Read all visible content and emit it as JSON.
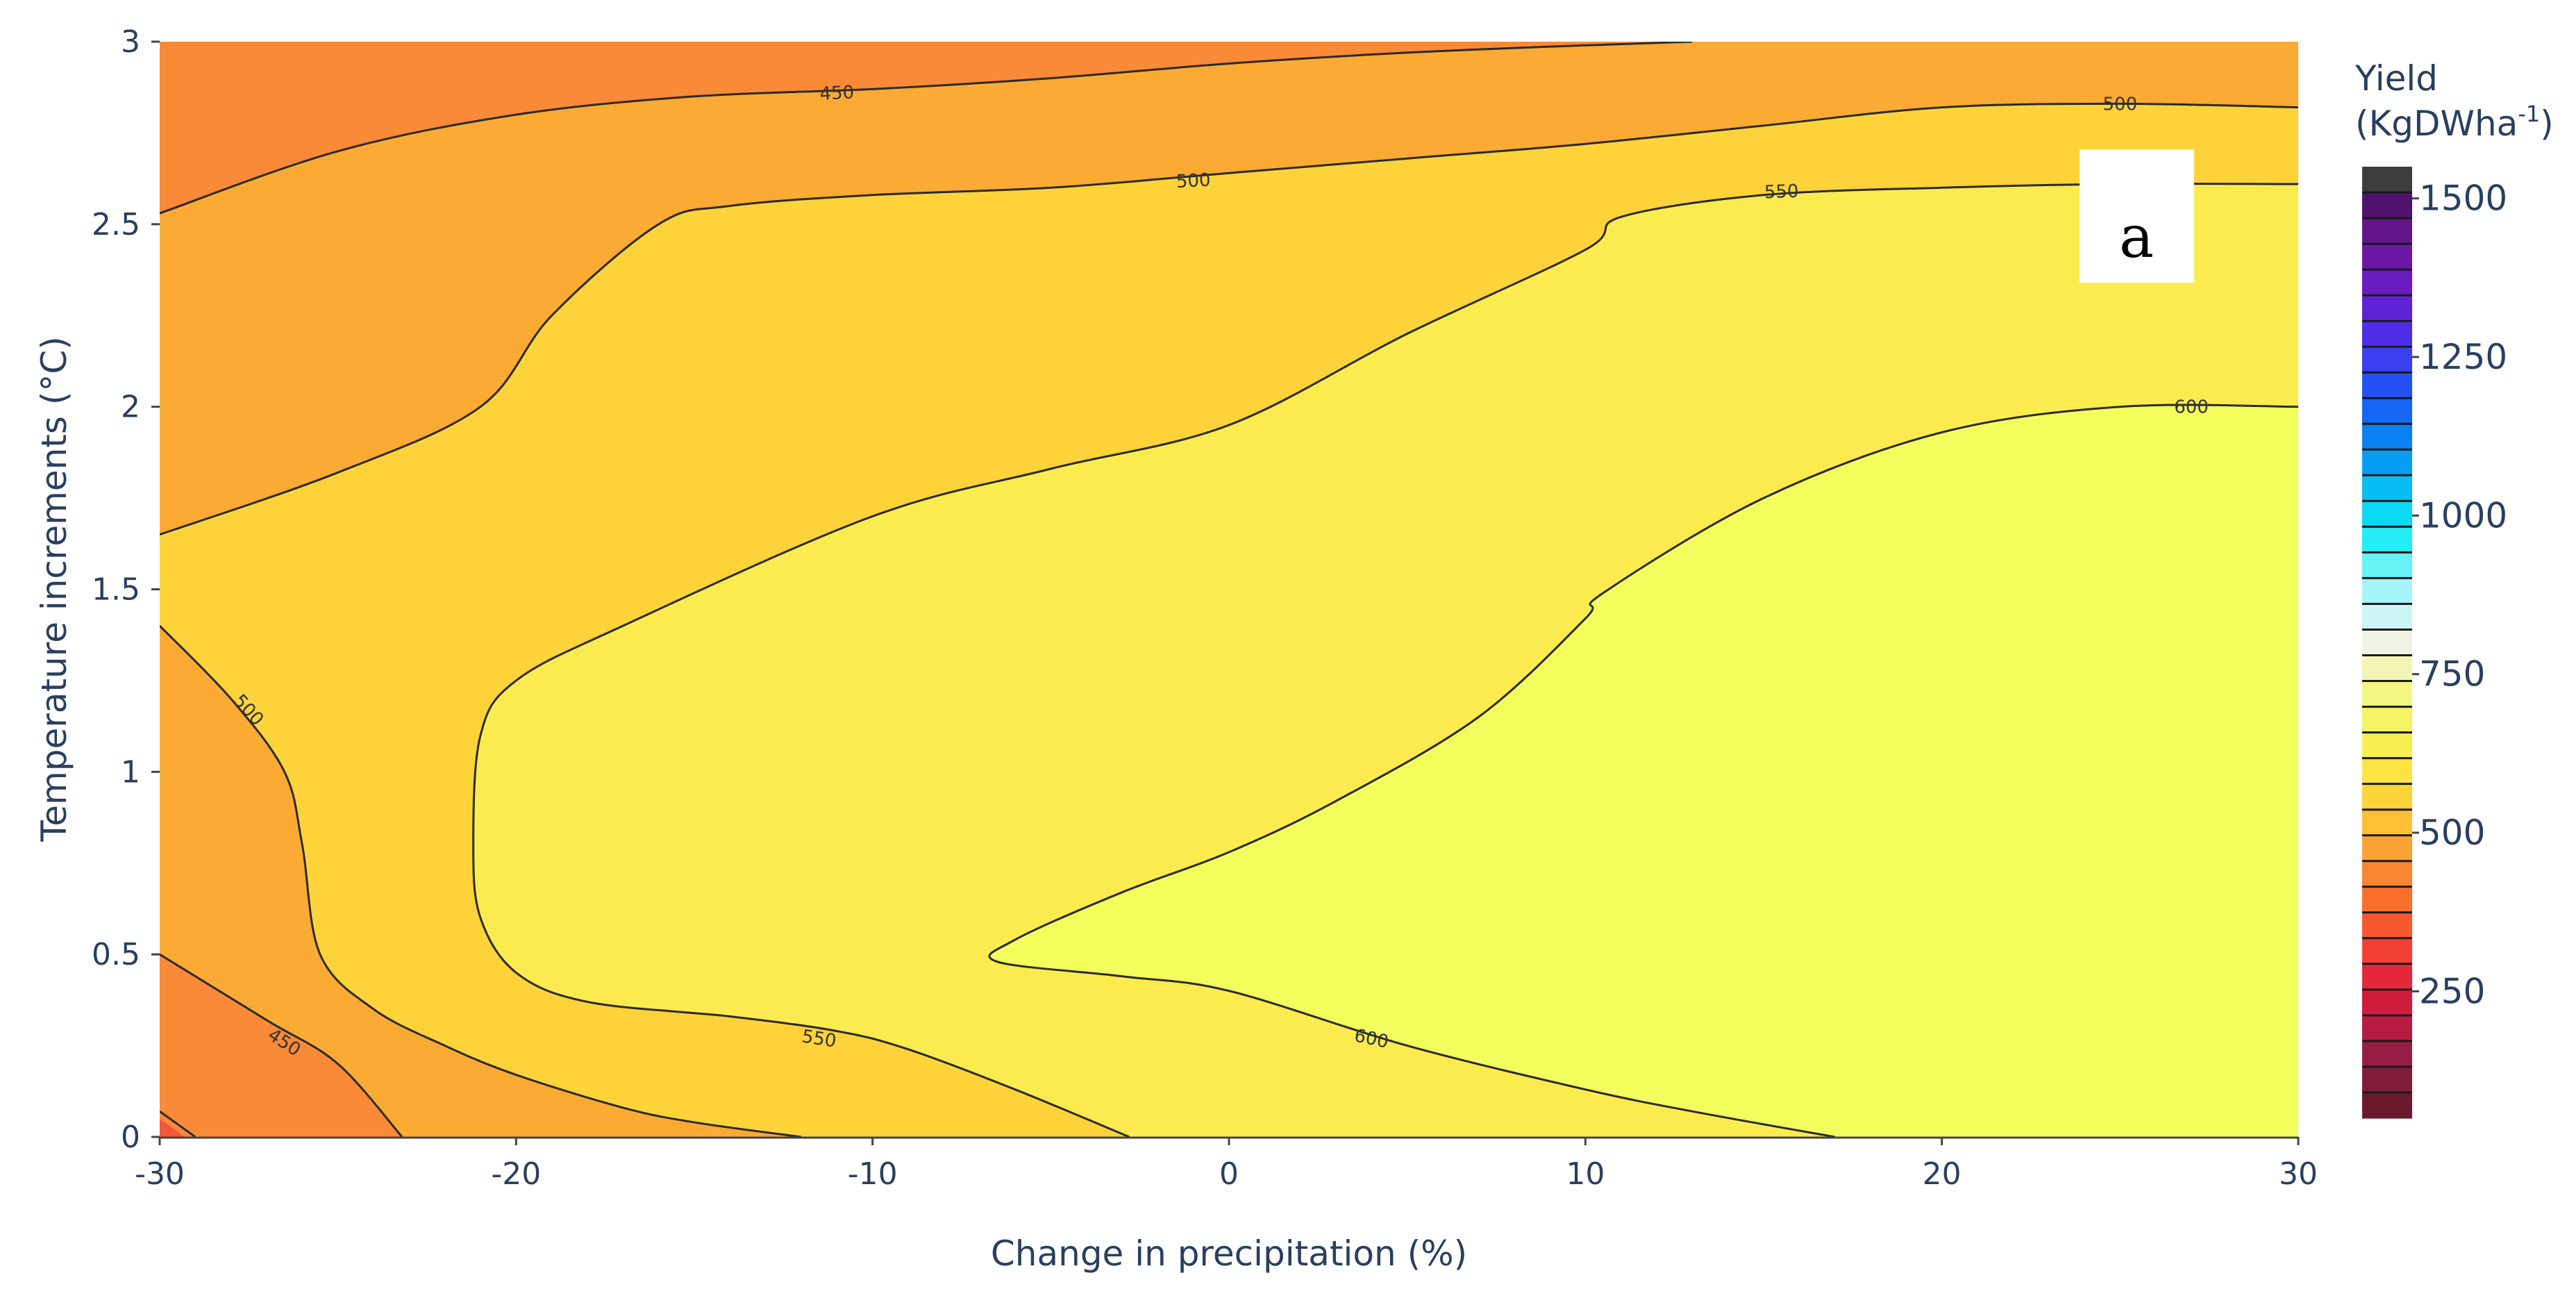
{
  "chart_data": {
    "type": "contour",
    "panel_label": "a",
    "xlabel": "Change in precipitation (%)",
    "ylabel": "Temperature increments (°C)",
    "xlim": [
      -30,
      30
    ],
    "ylim": [
      0,
      3
    ],
    "x_ticks": [
      "-30",
      "-20",
      "-10",
      "0",
      "10",
      "20",
      "30"
    ],
    "y_ticks": [
      "0",
      "0.5",
      "1",
      "1.5",
      "2",
      "2.5",
      "3"
    ],
    "x_tick_values": [
      -30,
      -20,
      -10,
      0,
      10,
      20,
      30
    ],
    "y_tick_values": [
      0,
      0.5,
      1,
      1.5,
      2,
      2.5,
      3
    ],
    "colorbar": {
      "title_line1": "Yield",
      "title_line2_base": "(KgDWha",
      "title_line2_sup": "-1",
      "title_line2_end": ")",
      "range": [
        50,
        1550
      ],
      "ticks": [
        "250",
        "500",
        "750",
        "1000",
        "1250",
        "1500"
      ],
      "tick_values": [
        250,
        500,
        750,
        1000,
        1250,
        1500
      ],
      "bin_size": 50,
      "bins": [
        "#6b1a2e",
        "#7e1c3a",
        "#981d43",
        "#b51c40",
        "#d01c3c",
        "#e4283a",
        "#f23f36",
        "#f8572f",
        "#f96f2b",
        "#f98530",
        "#fba234",
        "#fcbf36",
        "#fdd53a",
        "#fde444",
        "#f8ee52",
        "#f4f363",
        "#f3f681",
        "#f3f5b5",
        "#eef3e2",
        "#ccf5f7",
        "#a5f4f7",
        "#66f2f7",
        "#25edf6",
        "#0ad9f4",
        "#07bdf1",
        "#079ef1",
        "#0b80f3",
        "#1566f4",
        "#2450f4",
        "#3a3ff0",
        "#4e2fe6",
        "#5f22d6",
        "#6a1bc0",
        "#6d18a5",
        "#62168a",
        "#4f136d",
        "#3d3d3d"
      ]
    },
    "fill_colors": {
      "below_450": "#f98a37",
      "450_500": "#fbaa34",
      "500_550": "#fdd339",
      "550_600": "#fbeb4f",
      "above_600": "#f2fe5c"
    },
    "contours": [
      {
        "level": 450,
        "label": "450",
        "points": [
          [
            -30,
            2.53
          ],
          [
            -25,
            2.7
          ],
          [
            -20,
            2.8
          ],
          [
            -15,
            2.85
          ],
          [
            -10,
            2.87
          ],
          [
            -5,
            2.9
          ],
          [
            0,
            2.94
          ],
          [
            5,
            2.97
          ],
          [
            10,
            2.99
          ],
          [
            13,
            3.0
          ]
        ]
      },
      {
        "level": 450,
        "label": "450",
        "points": [
          [
            -30,
            0.5
          ],
          [
            -27,
            0.32
          ],
          [
            -25,
            0.2
          ],
          [
            -23.2,
            0.0
          ]
        ]
      },
      {
        "level": 500,
        "label": "500",
        "points": [
          [
            -30,
            1.65
          ],
          [
            -25,
            1.82
          ],
          [
            -21,
            2.0
          ],
          [
            -19,
            2.25
          ],
          [
            -16,
            2.5
          ],
          [
            -14,
            2.55
          ],
          [
            -10,
            2.58
          ],
          [
            -5,
            2.6
          ],
          [
            0,
            2.64
          ],
          [
            5,
            2.68
          ],
          [
            10,
            2.72
          ],
          [
            15,
            2.77
          ],
          [
            20,
            2.82
          ],
          [
            25,
            2.83
          ],
          [
            30,
            2.82
          ]
        ]
      },
      {
        "level": 500,
        "label": "500",
        "points": [
          [
            -30,
            1.4
          ],
          [
            -28,
            1.2
          ],
          [
            -26.5,
            1.0
          ],
          [
            -26,
            0.8
          ],
          [
            -25.5,
            0.5
          ],
          [
            -24,
            0.35
          ],
          [
            -22,
            0.25
          ],
          [
            -20,
            0.17
          ],
          [
            -17,
            0.08
          ],
          [
            -15,
            0.04
          ],
          [
            -12,
            0.0
          ]
        ]
      },
      {
        "level": 500,
        "label": "500",
        "points": [
          [
            -30,
            0.07
          ],
          [
            -29,
            0.0
          ]
        ]
      },
      {
        "level": 550,
        "label": "550",
        "points": [
          [
            -2.8,
            0.0
          ],
          [
            -6,
            0.13
          ],
          [
            -9,
            0.24
          ],
          [
            -11,
            0.29
          ],
          [
            -14,
            0.33
          ],
          [
            -18,
            0.37
          ],
          [
            -20,
            0.45
          ],
          [
            -21,
            0.6
          ],
          [
            -21.2,
            0.8
          ],
          [
            -21,
            1.1
          ],
          [
            -20,
            1.25
          ],
          [
            -17,
            1.4
          ],
          [
            -10,
            1.7
          ],
          [
            -5,
            1.83
          ],
          [
            0,
            1.95
          ],
          [
            5,
            2.2
          ],
          [
            10,
            2.43
          ],
          [
            11,
            2.52
          ],
          [
            15,
            2.58
          ],
          [
            20,
            2.6
          ],
          [
            25,
            2.61
          ],
          [
            30,
            2.61
          ]
        ]
      },
      {
        "level": 600,
        "label": "600",
        "points": [
          [
            17,
            0.0
          ],
          [
            13,
            0.07
          ],
          [
            10,
            0.13
          ],
          [
            5,
            0.25
          ],
          [
            0,
            0.4
          ],
          [
            -3,
            0.44
          ],
          [
            -6.5,
            0.48
          ],
          [
            -6,
            0.54
          ],
          [
            -3,
            0.67
          ],
          [
            0,
            0.78
          ],
          [
            3,
            0.92
          ],
          [
            7,
            1.15
          ],
          [
            10,
            1.42
          ],
          [
            10.5,
            1.49
          ],
          [
            15,
            1.75
          ],
          [
            20,
            1.93
          ],
          [
            25,
            2.0
          ],
          [
            30,
            2.0
          ]
        ]
      }
    ],
    "contour_labels": [
      {
        "text": "450",
        "x": -11,
        "y": 2.86,
        "angle": -3
      },
      {
        "text": "450",
        "x": -26.5,
        "y": 0.26,
        "angle": 33
      },
      {
        "text": "500",
        "x": -1,
        "y": 2.62,
        "angle": -3
      },
      {
        "text": "500",
        "x": 25,
        "y": 2.83,
        "angle": 0
      },
      {
        "text": "500",
        "x": -27.5,
        "y": 1.17,
        "angle": 48
      },
      {
        "text": "550",
        "x": -11.5,
        "y": 0.27,
        "angle": 9
      },
      {
        "text": "550",
        "x": 15.5,
        "y": 2.59,
        "angle": -2
      },
      {
        "text": "600",
        "x": 4,
        "y": 0.27,
        "angle": 12
      },
      {
        "text": "600",
        "x": 27,
        "y": 2.0,
        "angle": 0
      }
    ]
  }
}
